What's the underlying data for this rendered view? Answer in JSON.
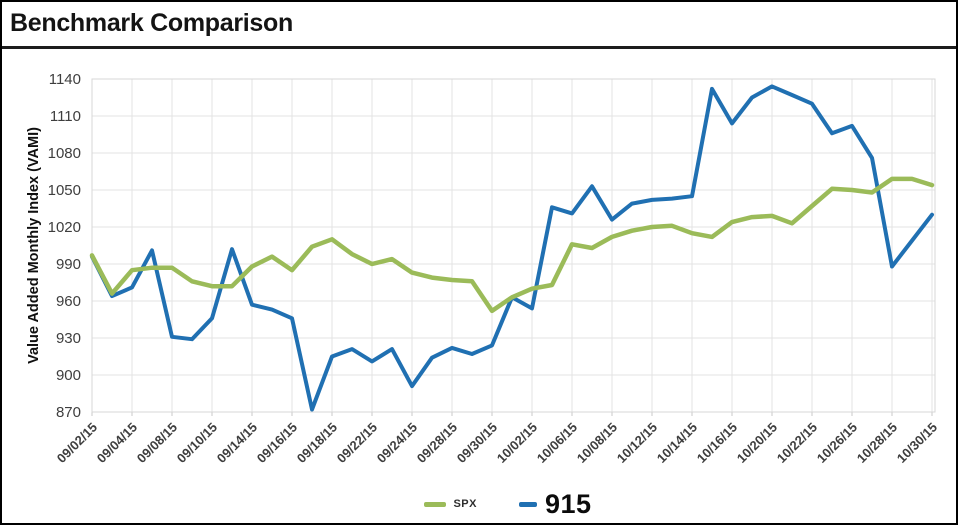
{
  "window": {
    "title": "Benchmark Comparison"
  },
  "colors": {
    "spx_line": "#9bbb59",
    "s915_line": "#2070b2",
    "gridline": "#e3e3e3",
    "plot_border": "#d7d7d7",
    "tick_stub": "#c8c8c8",
    "axis_text": "#3e3e3e",
    "title_text": "#141414"
  },
  "legend": {
    "spx_label": "SPX",
    "s915_label": "915"
  },
  "chart_data": {
    "type": "line",
    "title": "Benchmark Comparison",
    "xlabel": "",
    "ylabel": "Value Added Monthly Index (VAMI)",
    "ylim": [
      870,
      1140
    ],
    "ytick_step": 30,
    "yticks": [
      870,
      900,
      930,
      960,
      990,
      1020,
      1050,
      1080,
      1110,
      1140
    ],
    "grid": true,
    "legend_position": "bottom-center",
    "x_labels_shown_every": 2,
    "x": [
      "09/02/15",
      "09/03/15",
      "09/04/15",
      "09/07/15",
      "09/08/15",
      "09/09/15",
      "09/10/15",
      "09/11/15",
      "09/14/15",
      "09/15/15",
      "09/16/15",
      "09/17/15",
      "09/18/15",
      "09/21/15",
      "09/22/15",
      "09/23/15",
      "09/24/15",
      "09/25/15",
      "09/28/15",
      "09/29/15",
      "09/30/15",
      "10/01/15",
      "10/02/15",
      "10/05/15",
      "10/06/15",
      "10/07/15",
      "10/08/15",
      "10/09/15",
      "10/12/15",
      "10/13/15",
      "10/14/15",
      "10/15/15",
      "10/16/15",
      "10/19/15",
      "10/20/15",
      "10/21/15",
      "10/22/15",
      "10/23/15",
      "10/26/15",
      "10/27/15",
      "10/28/15",
      "10/29/15",
      "10/30/15"
    ],
    "x_tick_labels": [
      "09/02/15",
      "09/04/15",
      "09/08/15",
      "09/10/15",
      "09/14/15",
      "09/16/15",
      "09/18/15",
      "09/22/15",
      "09/24/15",
      "09/28/15",
      "09/30/15",
      "10/02/15",
      "10/06/15",
      "10/08/15",
      "10/12/15",
      "10/14/15",
      "10/16/15",
      "10/20/15",
      "10/22/15",
      "10/26/15",
      "10/28/15",
      "10/30/15"
    ],
    "series": [
      {
        "name": "SPX",
        "color": "#9bbb59",
        "values": [
          997,
          966,
          985,
          987,
          987,
          976,
          972,
          972,
          988,
          996,
          985,
          1004,
          1010,
          998,
          990,
          994,
          983,
          979,
          977,
          976,
          952,
          963,
          970,
          973,
          1006,
          1003,
          1012,
          1017,
          1020,
          1021,
          1015,
          1012,
          1024,
          1028,
          1029,
          1023,
          1037,
          1051,
          1050,
          1048,
          1059,
          1059,
          1054
        ]
      },
      {
        "name": "915",
        "color": "#2070b2",
        "values": [
          996,
          964,
          971,
          1001,
          931,
          929,
          946,
          1002,
          957,
          953,
          946,
          872,
          915,
          921,
          911,
          921,
          891,
          914,
          922,
          917,
          924,
          963,
          954,
          1036,
          1031,
          1053,
          1026,
          1039,
          1042,
          1043,
          1045,
          1132,
          1104,
          1125,
          1134,
          1127,
          1120,
          1096,
          1102,
          1076,
          988,
          1009,
          1030
        ]
      }
    ]
  }
}
